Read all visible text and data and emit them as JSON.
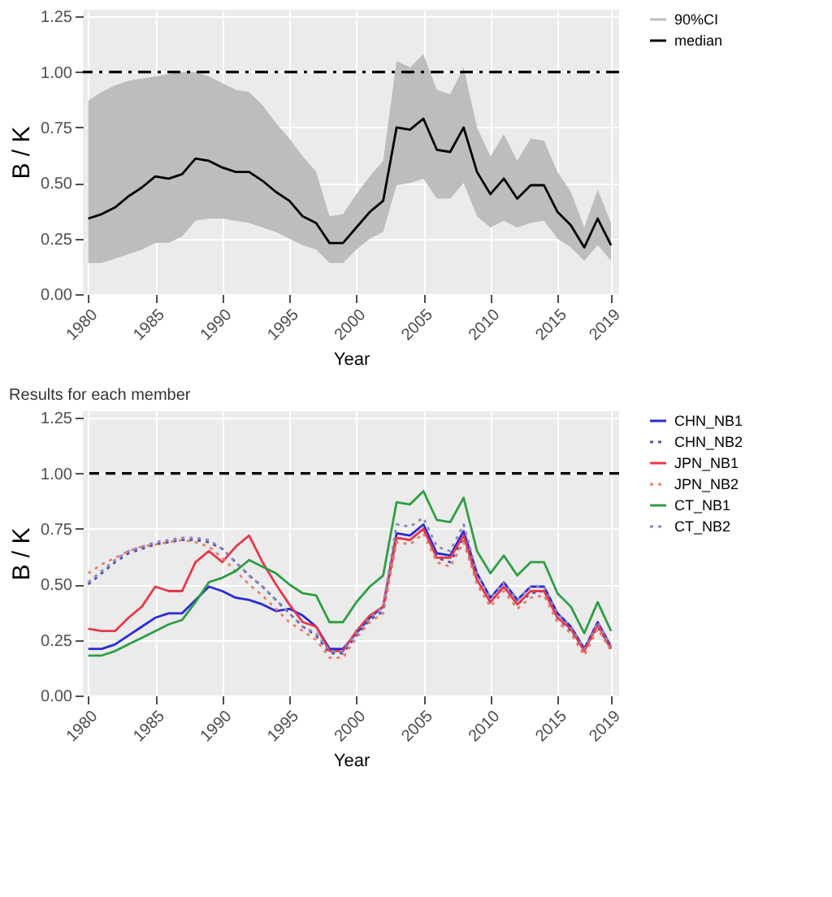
{
  "chart_data": [
    {
      "type": "line",
      "xlabel": "Year",
      "ylabel": "B / K",
      "x": [
        1980,
        1981,
        1982,
        1983,
        1984,
        1985,
        1986,
        1987,
        1988,
        1989,
        1990,
        1991,
        1992,
        1993,
        1994,
        1995,
        1996,
        1997,
        1998,
        1999,
        2000,
        2001,
        2002,
        2003,
        2004,
        2005,
        2006,
        2007,
        2008,
        2009,
        2010,
        2011,
        2012,
        2013,
        2014,
        2015,
        2016,
        2017,
        2018,
        2019
      ],
      "series": [
        {
          "name": "median",
          "color": "#000000",
          "lower": [
            0.14,
            0.14,
            0.16,
            0.18,
            0.2,
            0.23,
            0.23,
            0.26,
            0.33,
            0.34,
            0.34,
            0.33,
            0.32,
            0.3,
            0.28,
            0.25,
            0.22,
            0.2,
            0.14,
            0.14,
            0.2,
            0.25,
            0.28,
            0.49,
            0.5,
            0.52,
            0.43,
            0.43,
            0.5,
            0.35,
            0.3,
            0.33,
            0.3,
            0.32,
            0.33,
            0.25,
            0.21,
            0.15,
            0.22,
            0.15
          ],
          "upper": [
            0.87,
            0.91,
            0.94,
            0.96,
            0.97,
            0.98,
            0.99,
            1.0,
            1.0,
            0.98,
            0.95,
            0.92,
            0.91,
            0.85,
            0.77,
            0.7,
            0.62,
            0.55,
            0.35,
            0.36,
            0.45,
            0.53,
            0.6,
            1.05,
            1.02,
            1.08,
            0.92,
            0.9,
            1.02,
            0.75,
            0.62,
            0.72,
            0.6,
            0.7,
            0.69,
            0.55,
            0.46,
            0.3,
            0.47,
            0.32
          ],
          "values": [
            0.34,
            0.36,
            0.39,
            0.44,
            0.48,
            0.53,
            0.52,
            0.54,
            0.61,
            0.6,
            0.57,
            0.55,
            0.55,
            0.51,
            0.46,
            0.42,
            0.35,
            0.32,
            0.23,
            0.23,
            0.3,
            0.37,
            0.42,
            0.75,
            0.74,
            0.79,
            0.65,
            0.64,
            0.75,
            0.55,
            0.45,
            0.52,
            0.43,
            0.49,
            0.49,
            0.37,
            0.31,
            0.21,
            0.34,
            0.22
          ]
        }
      ],
      "xlim": [
        1979.6,
        2019.6
      ],
      "xticks": [
        1980,
        1985,
        1990,
        1995,
        2000,
        2005,
        2010,
        2015,
        2019
      ],
      "ylim": [
        0,
        1.28
      ],
      "yticks": [
        {
          "value": 0,
          "label": "0.00"
        },
        {
          "value": 0.25,
          "label": "0.25"
        },
        {
          "value": 0.5,
          "label": "0.50"
        },
        {
          "value": 0.75,
          "label": "0.75"
        },
        {
          "value": 1,
          "label": "1.00"
        },
        {
          "value": 1.25,
          "label": "1.25"
        }
      ],
      "ref_lines": [
        {
          "axis": "y",
          "value": 1,
          "color": "#000000",
          "line_style": "dashdot"
        }
      ],
      "annotations": [
        "90%CI"
      ],
      "grid": true,
      "legend": "right"
    },
    {
      "type": "line",
      "title": "Results for each member",
      "xlabel": "Year",
      "ylabel": "B / K",
      "x": [
        1980,
        1981,
        1982,
        1983,
        1984,
        1985,
        1986,
        1987,
        1988,
        1989,
        1990,
        1991,
        1992,
        1993,
        1994,
        1995,
        1996,
        1997,
        1998,
        1999,
        2000,
        2001,
        2002,
        2003,
        2004,
        2005,
        2006,
        2007,
        2008,
        2009,
        2010,
        2011,
        2012,
        2013,
        2014,
        2015,
        2016,
        2017,
        2018,
        2019
      ],
      "series": [
        {
          "name": "CHN_NB1",
          "color": "#2b2bd6",
          "line_style": "solid",
          "values": [
            0.21,
            0.21,
            0.23,
            0.27,
            0.31,
            0.35,
            0.37,
            0.37,
            0.43,
            0.49,
            0.47,
            0.44,
            0.43,
            0.41,
            0.38,
            0.39,
            0.36,
            0.31,
            0.21,
            0.21,
            0.28,
            0.35,
            0.4,
            0.73,
            0.72,
            0.77,
            0.64,
            0.63,
            0.74,
            0.55,
            0.44,
            0.51,
            0.43,
            0.49,
            0.49,
            0.37,
            0.31,
            0.21,
            0.33,
            0.22
          ]
        },
        {
          "name": "CHN_NB2",
          "color": "#5050a8",
          "line_style": "dotted",
          "values": [
            0.5,
            0.55,
            0.6,
            0.64,
            0.66,
            0.68,
            0.69,
            0.7,
            0.7,
            0.69,
            0.66,
            0.6,
            0.54,
            0.49,
            0.43,
            0.37,
            0.31,
            0.27,
            0.19,
            0.19,
            0.27,
            0.34,
            0.38,
            0.71,
            0.7,
            0.75,
            0.62,
            0.6,
            0.71,
            0.52,
            0.42,
            0.49,
            0.41,
            0.46,
            0.47,
            0.35,
            0.29,
            0.2,
            0.31,
            0.21
          ]
        },
        {
          "name": "JPN_NB1",
          "color": "#e8384a",
          "line_style": "solid",
          "values": [
            0.3,
            0.29,
            0.29,
            0.35,
            0.4,
            0.49,
            0.47,
            0.47,
            0.6,
            0.65,
            0.6,
            0.67,
            0.72,
            0.6,
            0.5,
            0.41,
            0.33,
            0.31,
            0.2,
            0.2,
            0.29,
            0.36,
            0.4,
            0.71,
            0.7,
            0.75,
            0.62,
            0.62,
            0.72,
            0.52,
            0.42,
            0.49,
            0.41,
            0.47,
            0.47,
            0.35,
            0.3,
            0.2,
            0.32,
            0.21
          ]
        },
        {
          "name": "JPN_NB2",
          "color": "#e8806a",
          "line_style": "dotted",
          "values": [
            0.55,
            0.59,
            0.62,
            0.65,
            0.67,
            0.68,
            0.69,
            0.7,
            0.69,
            0.67,
            0.62,
            0.56,
            0.5,
            0.45,
            0.39,
            0.33,
            0.29,
            0.25,
            0.17,
            0.17,
            0.26,
            0.33,
            0.37,
            0.69,
            0.68,
            0.73,
            0.6,
            0.58,
            0.69,
            0.5,
            0.4,
            0.47,
            0.39,
            0.44,
            0.45,
            0.33,
            0.28,
            0.18,
            0.3,
            0.2
          ]
        },
        {
          "name": "CT_NB1",
          "color": "#2e9e44",
          "line_style": "solid",
          "values": [
            0.18,
            0.18,
            0.2,
            0.23,
            0.26,
            0.29,
            0.32,
            0.34,
            0.42,
            0.51,
            0.53,
            0.56,
            0.61,
            0.58,
            0.55,
            0.5,
            0.46,
            0.45,
            0.33,
            0.33,
            0.42,
            0.49,
            0.54,
            0.87,
            0.86,
            0.92,
            0.79,
            0.78,
            0.89,
            0.65,
            0.55,
            0.63,
            0.54,
            0.6,
            0.6,
            0.46,
            0.4,
            0.28,
            0.42,
            0.29
          ]
        },
        {
          "name": "CT_NB2",
          "color": "#8a8ab8",
          "line_style": "dotted",
          "values": [
            0.51,
            0.56,
            0.61,
            0.65,
            0.67,
            0.69,
            0.7,
            0.71,
            0.71,
            0.7,
            0.66,
            0.6,
            0.54,
            0.49,
            0.43,
            0.37,
            0.31,
            0.28,
            0.2,
            0.2,
            0.28,
            0.35,
            0.4,
            0.77,
            0.76,
            0.8,
            0.67,
            0.65,
            0.77,
            0.55,
            0.44,
            0.51,
            0.43,
            0.49,
            0.49,
            0.37,
            0.31,
            0.21,
            0.33,
            0.22
          ]
        }
      ],
      "xlim": [
        1979.6,
        2019.6
      ],
      "xticks": [
        1980,
        1985,
        1990,
        1995,
        2000,
        2005,
        2010,
        2015,
        2019
      ],
      "ylim": [
        0,
        1.28
      ],
      "yticks": [
        {
          "value": 0,
          "label": "0.00"
        },
        {
          "value": 0.25,
          "label": "0.25"
        },
        {
          "value": 0.5,
          "label": "0.50"
        },
        {
          "value": 0.75,
          "label": "0.75"
        },
        {
          "value": 1,
          "label": "1.00"
        },
        {
          "value": 1.25,
          "label": "1.25"
        }
      ],
      "ref_lines": [
        {
          "axis": "y",
          "value": 1,
          "color": "#000000",
          "line_style": "dashed"
        }
      ],
      "grid": true,
      "legend": "right"
    }
  ]
}
